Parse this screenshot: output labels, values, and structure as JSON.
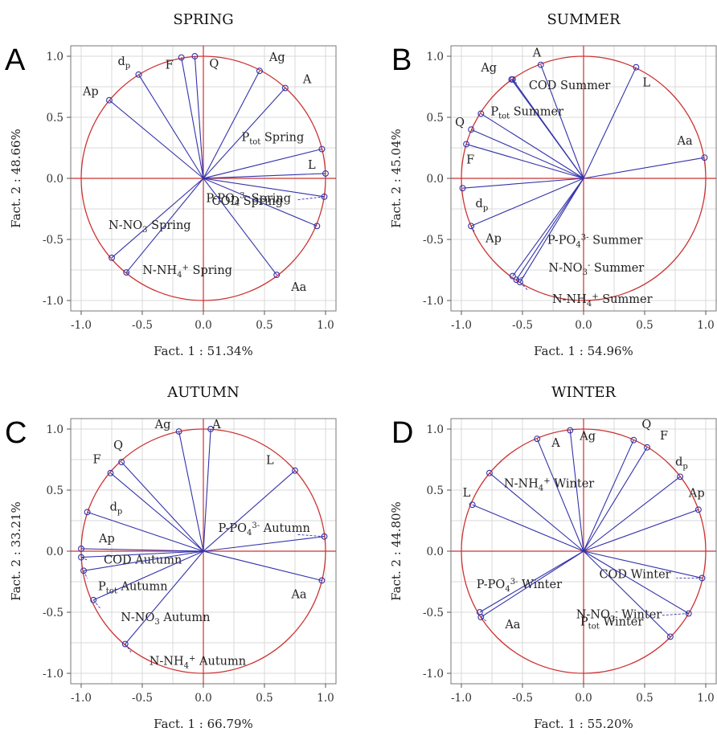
{
  "chart_data": [
    {
      "type": "scatter",
      "panel_letter": "A",
      "title": "SPRING",
      "xlabel": "Fact. 1 : 51.34%",
      "ylabel": "Fact. 2 : 48.66%",
      "xlim": [
        -1.1,
        1.1
      ],
      "ylim": [
        -1.1,
        1.1
      ],
      "ticks": [
        "-1.0",
        "-0.5",
        "0.0",
        "0.5",
        "1.0"
      ],
      "grid": true,
      "points": [
        {
          "label": "Ap",
          "x": -0.77,
          "y": 0.64
        },
        {
          "label": "dp",
          "x": -0.53,
          "y": 0.85
        },
        {
          "label": "F",
          "x": -0.18,
          "y": 0.99
        },
        {
          "label": "Q",
          "x": -0.07,
          "y": 1.0
        },
        {
          "label": "Ag",
          "x": 0.46,
          "y": 0.88
        },
        {
          "label": "A",
          "x": 0.67,
          "y": 0.74
        },
        {
          "label": "Ptot Spring",
          "x": 0.97,
          "y": 0.24
        },
        {
          "label": "L",
          "x": 1.0,
          "y": 0.04
        },
        {
          "label": "COD Spring",
          "x": 0.99,
          "y": -0.15
        },
        {
          "label": "P-PO4 3- Spring",
          "x": 0.93,
          "y": -0.39
        },
        {
          "label": "Aa",
          "x": 0.6,
          "y": -0.79
        },
        {
          "label": "N-NO3 Spring",
          "x": -0.75,
          "y": -0.65
        },
        {
          "label": "N-NH4+ Spring",
          "x": -0.63,
          "y": -0.77
        }
      ]
    },
    {
      "type": "scatter",
      "panel_letter": "B",
      "title": "SUMMER",
      "xlabel": "Fact. 1 : 54.96%",
      "ylabel": "Fact. 2 : 45.04%",
      "xlim": [
        -1.1,
        1.1
      ],
      "ylim": [
        -1.1,
        1.1
      ],
      "ticks": [
        "-1.0",
        "-0.5",
        "0.0",
        "0.5",
        "1.0"
      ],
      "grid": true,
      "points": [
        {
          "label": "A",
          "x": -0.35,
          "y": 0.93
        },
        {
          "label": "L",
          "x": 0.43,
          "y": 0.91
        },
        {
          "label": "Ag",
          "x": -0.59,
          "y": 0.81
        },
        {
          "label": "COD Summer",
          "x": -0.58,
          "y": 0.81
        },
        {
          "label": "Ptot Summer",
          "x": -0.84,
          "y": 0.53
        },
        {
          "label": "Q",
          "x": -0.92,
          "y": 0.4
        },
        {
          "label": "F",
          "x": -0.96,
          "y": 0.28
        },
        {
          "label": "Aa",
          "x": 0.99,
          "y": 0.17
        },
        {
          "label": "dp",
          "x": -0.99,
          "y": -0.08
        },
        {
          "label": "Ap",
          "x": -0.92,
          "y": -0.39
        },
        {
          "label": "P-PO4 3- Summer",
          "x": -0.58,
          "y": -0.8
        },
        {
          "label": "N-NO3- Summer",
          "x": -0.55,
          "y": -0.83
        },
        {
          "label": "N-NH4+ Summer",
          "x": -0.52,
          "y": -0.85
        }
      ]
    },
    {
      "type": "scatter",
      "panel_letter": "C",
      "title": "AUTUMN",
      "xlabel": "Fact. 1 : 66.79%",
      "ylabel": "Fact. 2 : 33.21%",
      "xlim": [
        -1.1,
        1.1
      ],
      "ylim": [
        -1.1,
        1.1
      ],
      "ticks": [
        "-1.0",
        "-0.5",
        "0.0",
        "0.5",
        "1.0"
      ],
      "grid": true,
      "points": [
        {
          "label": "A",
          "x": 0.06,
          "y": 1.0
        },
        {
          "label": "Ag",
          "x": -0.2,
          "y": 0.98
        },
        {
          "label": "Q",
          "x": -0.67,
          "y": 0.73
        },
        {
          "label": "F",
          "x": -0.76,
          "y": 0.64
        },
        {
          "label": "L",
          "x": 0.75,
          "y": 0.66
        },
        {
          "label": "dp",
          "x": -0.95,
          "y": 0.32
        },
        {
          "label": "P-PO4 3- Autumn",
          "x": 0.99,
          "y": 0.12
        },
        {
          "label": "Ap",
          "x": -1.0,
          "y": 0.02
        },
        {
          "label": "COD Autumn",
          "x": -1.0,
          "y": -0.05
        },
        {
          "label": "Ptot Autumn",
          "x": -0.98,
          "y": -0.16
        },
        {
          "label": "Aa",
          "x": 0.97,
          "y": -0.24
        },
        {
          "label": "N-NO3 Autumn",
          "x": -0.9,
          "y": -0.4
        },
        {
          "label": "N-NH4+ Autumn",
          "x": -0.64,
          "y": -0.76
        }
      ]
    },
    {
      "type": "scatter",
      "panel_letter": "D",
      "title": "WINTER",
      "xlabel": "Fact. 1 : 55.20%",
      "ylabel": "Fact. 2 : 44.80%",
      "xlim": [
        -1.1,
        1.1
      ],
      "ylim": [
        -1.1,
        1.1
      ],
      "ticks": [
        "-1.0",
        "-0.5",
        "0.0",
        "0.5",
        "1.0"
      ],
      "grid": true,
      "points": [
        {
          "label": "A",
          "x": -0.38,
          "y": 0.92
        },
        {
          "label": "Ag",
          "x": -0.11,
          "y": 0.99
        },
        {
          "label": "Q",
          "x": 0.41,
          "y": 0.91
        },
        {
          "label": "F",
          "x": 0.52,
          "y": 0.85
        },
        {
          "label": "dp",
          "x": 0.79,
          "y": 0.61
        },
        {
          "label": "Ap",
          "x": 0.94,
          "y": 0.34
        },
        {
          "label": "N-NH4+ Winter",
          "x": -0.77,
          "y": 0.64
        },
        {
          "label": "L",
          "x": -0.91,
          "y": 0.38
        },
        {
          "label": "COD Winter",
          "x": 0.97,
          "y": -0.22
        },
        {
          "label": "P-PO4 3- Winter",
          "x": -0.85,
          "y": -0.5
        },
        {
          "label": "Aa",
          "x": -0.84,
          "y": -0.54
        },
        {
          "label": "N-NO3- Winter",
          "x": 0.86,
          "y": -0.51
        },
        {
          "label": "Ptot Winter",
          "x": 0.71,
          "y": -0.7
        }
      ]
    }
  ]
}
